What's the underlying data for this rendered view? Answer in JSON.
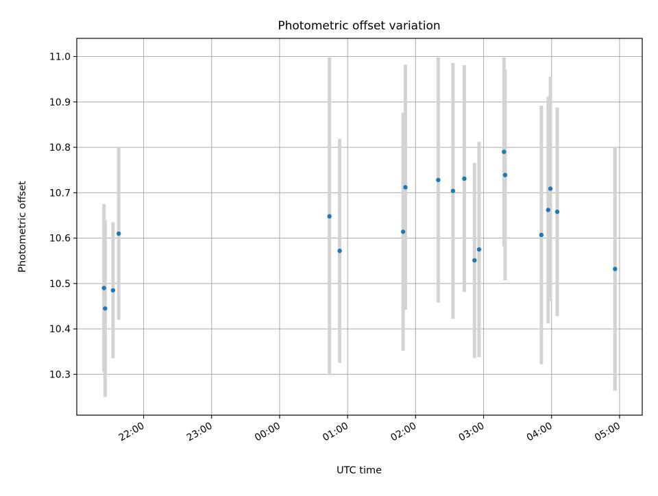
{
  "chart_data": {
    "type": "scatter",
    "title": "Photometric offset variation",
    "xlabel": "UTC time",
    "ylabel": "Photometric offset",
    "x_ticks": [
      "22:00",
      "23:00",
      "00:00",
      "01:00",
      "02:00",
      "03:00",
      "04:00",
      "05:00"
    ],
    "y_ticks": [
      "10.3",
      "10.4",
      "10.5",
      "10.6",
      "10.7",
      "10.8",
      "10.9",
      "11.0"
    ],
    "ylim": [
      10.21,
      11.04
    ],
    "xlim": [
      "21:01",
      "05:20"
    ],
    "grid": true,
    "point_color": "#1f77b4",
    "errorbar_color": "#d3d3d3",
    "points": [
      {
        "x": "21:25",
        "y": 10.49,
        "err": 0.185
      },
      {
        "x": "21:26",
        "y": 10.445,
        "err": 0.195
      },
      {
        "x": "21:33",
        "y": 10.485,
        "err": 0.15
      },
      {
        "x": "21:38",
        "y": 10.61,
        "err": 0.19
      },
      {
        "x": "00:44",
        "y": 10.648,
        "err": 0.35
      },
      {
        "x": "00:53",
        "y": 10.572,
        "err": 0.247
      },
      {
        "x": "01:49",
        "y": 10.614,
        "err": 0.262
      },
      {
        "x": "01:51",
        "y": 10.712,
        "err": 0.27
      },
      {
        "x": "02:20",
        "y": 10.728,
        "err": 0.27
      },
      {
        "x": "02:33",
        "y": 10.704,
        "err": 0.282
      },
      {
        "x": "02:43",
        "y": 10.731,
        "err": 0.25
      },
      {
        "x": "02:52",
        "y": 10.551,
        "err": 0.215
      },
      {
        "x": "02:56",
        "y": 10.575,
        "err": 0.237
      },
      {
        "x": "03:18",
        "y": 10.79,
        "err": 0.208
      },
      {
        "x": "03:19",
        "y": 10.739,
        "err": 0.232
      },
      {
        "x": "03:51",
        "y": 10.607,
        "err": 0.285
      },
      {
        "x": "03:57",
        "y": 10.662,
        "err": 0.25
      },
      {
        "x": "03:59",
        "y": 10.709,
        "err": 0.247
      },
      {
        "x": "04:05",
        "y": 10.658,
        "err": 0.23
      },
      {
        "x": "04:56",
        "y": 10.532,
        "err": 0.268
      }
    ]
  }
}
